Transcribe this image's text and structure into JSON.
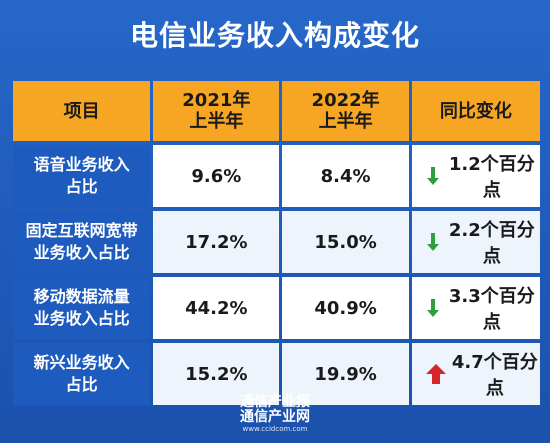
{
  "title": "电信业务收入构成变化",
  "header": {
    "col1": "项目",
    "col2_line1": "2021年",
    "col2_line2": "上半年",
    "col3_line1": "2022年",
    "col3_line2": "上半年",
    "col4": "同比变化"
  },
  "rows": [
    {
      "label_line1": "语音业务收入",
      "label_line2": "占比",
      "y2021": "9.6%",
      "y2022": "8.4%",
      "direction": "down",
      "change": "1.2个百分点"
    },
    {
      "label_line1": "固定互联网宽带",
      "label_line2": "业务收入占比",
      "y2021": "17.2%",
      "y2022": "15.0%",
      "direction": "down",
      "change": "2.2个百分点"
    },
    {
      "label_line1": "移动数据流量",
      "label_line2": "业务收入占比",
      "y2021": "44.2%",
      "y2022": "40.9%",
      "direction": "down",
      "change": "3.3个百分点"
    },
    {
      "label_line1": "新兴业务收入",
      "label_line2": "占比",
      "y2021": "15.2%",
      "y2022": "19.9%",
      "direction": "up",
      "change": "4.7个百分点"
    }
  ],
  "colors": {
    "background": "#1f58b6",
    "header": "#f6a623",
    "down_arrow": "#2e9e3f",
    "up_arrow": "#d7262a"
  },
  "footer": {
    "line1": "通信产业报",
    "line2": "通信产业网",
    "line3": "www.ccidcom.com"
  }
}
